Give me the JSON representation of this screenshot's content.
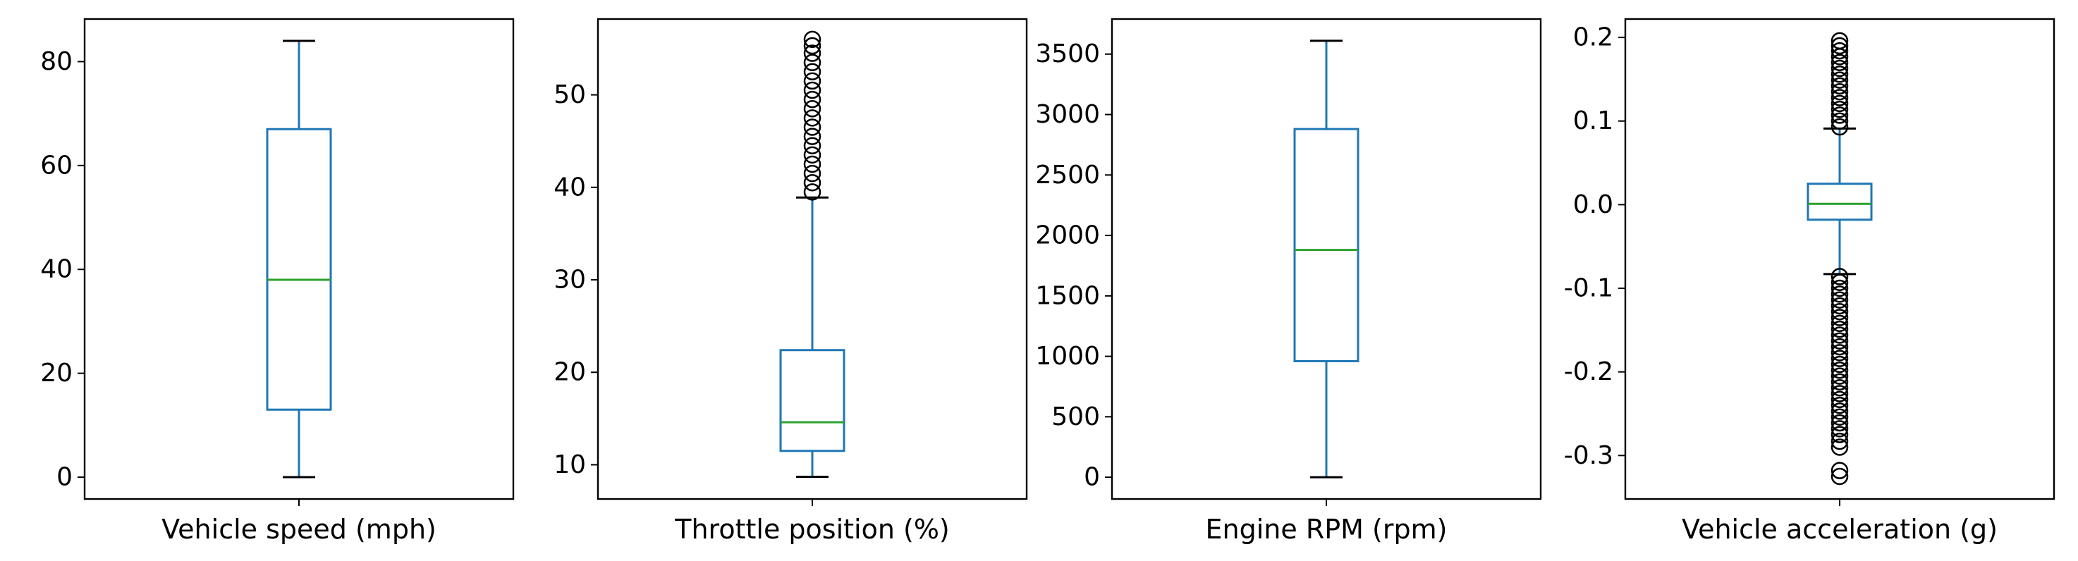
{
  "chart_data": [
    {
      "type": "box",
      "xlabel": "Vehicle speed (mph)",
      "ylim": [
        -4.2,
        88.2
      ],
      "yticks": [
        0,
        20,
        40,
        60,
        80
      ],
      "box": {
        "whisker_low": 0,
        "q1": 13,
        "median": 38,
        "q3": 67,
        "whisker_high": 84
      },
      "outliers": []
    },
    {
      "type": "box",
      "xlabel": "Throttle position (%)",
      "ylim": [
        6.3,
        58.2
      ],
      "yticks": [
        10,
        20,
        30,
        40,
        50
      ],
      "box": {
        "whisker_low": 8.7,
        "q1": 11.5,
        "median": 14.6,
        "q3": 22.4,
        "whisker_high": 38.9
      },
      "outliers": [
        39.5,
        40.5,
        41.5,
        42.5,
        43.5,
        44.5,
        45.5,
        46.5,
        47.5,
        48.5,
        49.5,
        50.5,
        51.5,
        52.5,
        53.5,
        54.5,
        55.3,
        56.0
      ]
    },
    {
      "type": "box",
      "xlabel": "Engine RPM (rpm)",
      "ylim": [
        -180,
        3790
      ],
      "yticks": [
        0,
        500,
        1000,
        1500,
        2000,
        2500,
        3000,
        3500
      ],
      "box": {
        "whisker_low": 0,
        "q1": 960,
        "median": 1880,
        "q3": 2880,
        "whisker_high": 3610
      },
      "outliers": []
    },
    {
      "type": "box",
      "xlabel": "Vehicle acceleration (g)",
      "ylim": [
        -0.352,
        0.222
      ],
      "yticks": [
        "0.2",
        "0.1",
        "0.0",
        "-0.1",
        "-0.2",
        "-0.3"
      ],
      "ytick_values": [
        0.2,
        0.1,
        0.0,
        -0.1,
        -0.2,
        -0.3
      ],
      "box": {
        "whisker_low": -0.083,
        "q1": -0.018,
        "median": 0.001,
        "q3": 0.025,
        "whisker_high": 0.091
      },
      "outliers": [
        0.093,
        0.1,
        0.107,
        0.114,
        0.121,
        0.128,
        0.135,
        0.142,
        0.149,
        0.156,
        0.163,
        0.17,
        0.177,
        0.184,
        0.19,
        0.196,
        -0.086,
        -0.093,
        -0.1,
        -0.107,
        -0.114,
        -0.121,
        -0.128,
        -0.135,
        -0.142,
        -0.149,
        -0.156,
        -0.163,
        -0.17,
        -0.177,
        -0.184,
        -0.191,
        -0.198,
        -0.205,
        -0.212,
        -0.219,
        -0.226,
        -0.233,
        -0.24,
        -0.247,
        -0.254,
        -0.261,
        -0.268,
        -0.275,
        -0.283,
        -0.29,
        -0.318,
        -0.325
      ]
    }
  ],
  "colors": {
    "box": "#1f77b4",
    "median": "#2ca02c",
    "whisker": "#1f77b4",
    "cap": "#000000",
    "outlier": "#000000",
    "axes": "#000000"
  }
}
